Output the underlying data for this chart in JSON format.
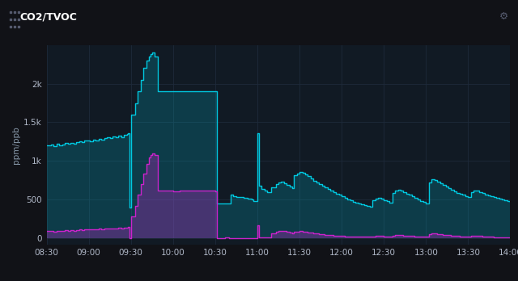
{
  "title": "CO2/TVOC",
  "bg_color": "#111217",
  "plot_bg_color": "#111a24",
  "grid_color": "#1e2a3a",
  "co2_color": "#00c8e0",
  "tvoc_color": "#cc22cc",
  "ylabel": "ppm/ppb",
  "yticks": [
    0,
    500,
    1000,
    1500,
    2000
  ],
  "ytick_labels": [
    "0",
    "500",
    "1k",
    "1.5k",
    "2k"
  ],
  "ylim": [
    -80,
    2500
  ],
  "xlim": [
    0,
    330
  ],
  "xtick_positions": [
    0,
    30,
    60,
    90,
    120,
    150,
    180,
    210,
    240,
    270,
    300,
    330
  ],
  "xtick_labels": [
    "08:30",
    "09:00",
    "09:30",
    "10:00",
    "10:30",
    "11:00",
    "11:30",
    "12:00",
    "12:30",
    "13:00",
    "13:30",
    "14:00"
  ],
  "co2": [
    [
      0,
      1200
    ],
    [
      3,
      1210
    ],
    [
      5,
      1190
    ],
    [
      7,
      1220
    ],
    [
      9,
      1200
    ],
    [
      11,
      1215
    ],
    [
      13,
      1230
    ],
    [
      15,
      1218
    ],
    [
      17,
      1235
    ],
    [
      19,
      1225
    ],
    [
      21,
      1245
    ],
    [
      23,
      1255
    ],
    [
      25,
      1242
    ],
    [
      27,
      1260
    ],
    [
      29,
      1268
    ],
    [
      31,
      1258
    ],
    [
      33,
      1275
    ],
    [
      35,
      1265
    ],
    [
      37,
      1285
    ],
    [
      39,
      1275
    ],
    [
      41,
      1295
    ],
    [
      43,
      1305
    ],
    [
      45,
      1292
    ],
    [
      47,
      1315
    ],
    [
      49,
      1305
    ],
    [
      51,
      1325
    ],
    [
      53,
      1310
    ],
    [
      55,
      1335
    ],
    [
      57,
      1345
    ],
    [
      58,
      1355
    ],
    [
      59,
      400
    ],
    [
      60,
      1600
    ],
    [
      63,
      1750
    ],
    [
      65,
      1900
    ],
    [
      67,
      2050
    ],
    [
      69,
      2200
    ],
    [
      71,
      2300
    ],
    [
      73,
      2350
    ],
    [
      74,
      2380
    ],
    [
      75,
      2400
    ],
    [
      77,
      2350
    ],
    [
      79,
      1900
    ],
    [
      81,
      1900
    ],
    [
      85,
      1900
    ],
    [
      90,
      1900
    ],
    [
      95,
      1900
    ],
    [
      120,
      1900
    ],
    [
      121,
      450
    ],
    [
      123,
      445
    ],
    [
      125,
      448
    ],
    [
      127,
      450
    ],
    [
      129,
      446
    ],
    [
      131,
      560
    ],
    [
      133,
      540
    ],
    [
      135,
      530
    ],
    [
      140,
      520
    ],
    [
      143,
      510
    ],
    [
      146,
      505
    ],
    [
      147,
      480
    ],
    [
      150,
      1360
    ],
    [
      151,
      680
    ],
    [
      153,
      640
    ],
    [
      155,
      620
    ],
    [
      157,
      600
    ],
    [
      160,
      660
    ],
    [
      163,
      700
    ],
    [
      165,
      720
    ],
    [
      167,
      730
    ],
    [
      169,
      710
    ],
    [
      171,
      690
    ],
    [
      173,
      670
    ],
    [
      175,
      650
    ],
    [
      176,
      820
    ],
    [
      178,
      840
    ],
    [
      180,
      860
    ],
    [
      182,
      850
    ],
    [
      184,
      830
    ],
    [
      186,
      800
    ],
    [
      188,
      770
    ],
    [
      190,
      740
    ],
    [
      192,
      720
    ],
    [
      194,
      700
    ],
    [
      196,
      680
    ],
    [
      198,
      660
    ],
    [
      200,
      640
    ],
    [
      202,
      620
    ],
    [
      204,
      600
    ],
    [
      206,
      580
    ],
    [
      208,
      560
    ],
    [
      210,
      545
    ],
    [
      212,
      520
    ],
    [
      214,
      505
    ],
    [
      216,
      490
    ],
    [
      218,
      475
    ],
    [
      220,
      460
    ],
    [
      222,
      450
    ],
    [
      224,
      440
    ],
    [
      226,
      430
    ],
    [
      228,
      420
    ],
    [
      230,
      410
    ],
    [
      232,
      490
    ],
    [
      234,
      510
    ],
    [
      236,
      520
    ],
    [
      238,
      510
    ],
    [
      240,
      495
    ],
    [
      242,
      480
    ],
    [
      244,
      465
    ],
    [
      246,
      590
    ],
    [
      248,
      620
    ],
    [
      250,
      630
    ],
    [
      252,
      615
    ],
    [
      254,
      600
    ],
    [
      256,
      580
    ],
    [
      258,
      560
    ],
    [
      260,
      540
    ],
    [
      262,
      520
    ],
    [
      264,
      505
    ],
    [
      266,
      485
    ],
    [
      268,
      470
    ],
    [
      270,
      455
    ],
    [
      272,
      720
    ],
    [
      274,
      760
    ],
    [
      276,
      750
    ],
    [
      278,
      730
    ],
    [
      280,
      710
    ],
    [
      282,
      685
    ],
    [
      284,
      665
    ],
    [
      286,
      645
    ],
    [
      288,
      625
    ],
    [
      290,
      605
    ],
    [
      292,
      590
    ],
    [
      294,
      575
    ],
    [
      296,
      560
    ],
    [
      298,
      545
    ],
    [
      300,
      535
    ],
    [
      302,
      600
    ],
    [
      304,
      620
    ],
    [
      306,
      615
    ],
    [
      308,
      600
    ],
    [
      310,
      585
    ],
    [
      312,
      570
    ],
    [
      314,
      555
    ],
    [
      316,
      545
    ],
    [
      318,
      535
    ],
    [
      320,
      525
    ],
    [
      322,
      515
    ],
    [
      324,
      505
    ],
    [
      326,
      495
    ],
    [
      328,
      485
    ],
    [
      330,
      475
    ]
  ],
  "tvoc": [
    [
      0,
      90
    ],
    [
      3,
      95
    ],
    [
      5,
      88
    ],
    [
      7,
      96
    ],
    [
      9,
      92
    ],
    [
      11,
      98
    ],
    [
      13,
      102
    ],
    [
      15,
      95
    ],
    [
      17,
      105
    ],
    [
      19,
      100
    ],
    [
      21,
      108
    ],
    [
      23,
      112
    ],
    [
      25,
      106
    ],
    [
      27,
      115
    ],
    [
      29,
      118
    ],
    [
      31,
      112
    ],
    [
      33,
      120
    ],
    [
      35,
      115
    ],
    [
      37,
      122
    ],
    [
      39,
      118
    ],
    [
      41,
      125
    ],
    [
      43,
      128
    ],
    [
      45,
      122
    ],
    [
      47,
      130
    ],
    [
      49,
      126
    ],
    [
      51,
      132
    ],
    [
      53,
      128
    ],
    [
      55,
      135
    ],
    [
      57,
      138
    ],
    [
      58,
      142
    ],
    [
      59,
      5
    ],
    [
      60,
      280
    ],
    [
      63,
      420
    ],
    [
      65,
      560
    ],
    [
      67,
      700
    ],
    [
      69,
      840
    ],
    [
      71,
      960
    ],
    [
      73,
      1050
    ],
    [
      74,
      1080
    ],
    [
      75,
      1100
    ],
    [
      77,
      1080
    ],
    [
      79,
      620
    ],
    [
      81,
      615
    ],
    [
      85,
      612
    ],
    [
      90,
      610
    ],
    [
      95,
      612
    ],
    [
      120,
      610
    ],
    [
      121,
      5
    ],
    [
      123,
      5
    ],
    [
      127,
      8
    ],
    [
      130,
      5
    ],
    [
      135,
      6
    ],
    [
      140,
      5
    ],
    [
      145,
      5
    ],
    [
      149,
      5
    ],
    [
      150,
      170
    ],
    [
      151,
      15
    ],
    [
      153,
      12
    ],
    [
      155,
      10
    ],
    [
      157,
      8
    ],
    [
      160,
      60
    ],
    [
      163,
      80
    ],
    [
      165,
      90
    ],
    [
      167,
      100
    ],
    [
      169,
      95
    ],
    [
      171,
      85
    ],
    [
      173,
      75
    ],
    [
      175,
      65
    ],
    [
      176,
      80
    ],
    [
      178,
      85
    ],
    [
      180,
      90
    ],
    [
      182,
      85
    ],
    [
      184,
      80
    ],
    [
      186,
      75
    ],
    [
      188,
      70
    ],
    [
      190,
      65
    ],
    [
      192,
      60
    ],
    [
      194,
      55
    ],
    [
      196,
      50
    ],
    [
      198,
      45
    ],
    [
      200,
      42
    ],
    [
      202,
      38
    ],
    [
      204,
      35
    ],
    [
      206,
      32
    ],
    [
      208,
      30
    ],
    [
      210,
      28
    ],
    [
      212,
      26
    ],
    [
      214,
      25
    ],
    [
      216,
      24
    ],
    [
      218,
      23
    ],
    [
      220,
      22
    ],
    [
      222,
      21
    ],
    [
      224,
      20
    ],
    [
      226,
      19
    ],
    [
      228,
      18
    ],
    [
      230,
      17
    ],
    [
      232,
      25
    ],
    [
      234,
      28
    ],
    [
      236,
      30
    ],
    [
      238,
      28
    ],
    [
      240,
      25
    ],
    [
      242,
      22
    ],
    [
      244,
      20
    ],
    [
      246,
      35
    ],
    [
      248,
      40
    ],
    [
      250,
      42
    ],
    [
      252,
      38
    ],
    [
      254,
      35
    ],
    [
      256,
      32
    ],
    [
      258,
      30
    ],
    [
      260,
      28
    ],
    [
      262,
      26
    ],
    [
      264,
      24
    ],
    [
      266,
      22
    ],
    [
      268,
      20
    ],
    [
      270,
      18
    ],
    [
      272,
      55
    ],
    [
      274,
      65
    ],
    [
      276,
      62
    ],
    [
      278,
      58
    ],
    [
      280,
      52
    ],
    [
      282,
      48
    ],
    [
      284,
      44
    ],
    [
      286,
      40
    ],
    [
      288,
      36
    ],
    [
      290,
      32
    ],
    [
      292,
      28
    ],
    [
      294,
      25
    ],
    [
      296,
      22
    ],
    [
      298,
      20
    ],
    [
      300,
      18
    ],
    [
      302,
      30
    ],
    [
      304,
      35
    ],
    [
      306,
      32
    ],
    [
      308,
      28
    ],
    [
      310,
      25
    ],
    [
      312,
      22
    ],
    [
      314,
      20
    ],
    [
      316,
      18
    ],
    [
      318,
      16
    ],
    [
      320,
      15
    ],
    [
      322,
      14
    ],
    [
      324,
      13
    ],
    [
      326,
      12
    ],
    [
      328,
      11
    ],
    [
      330,
      10
    ]
  ]
}
